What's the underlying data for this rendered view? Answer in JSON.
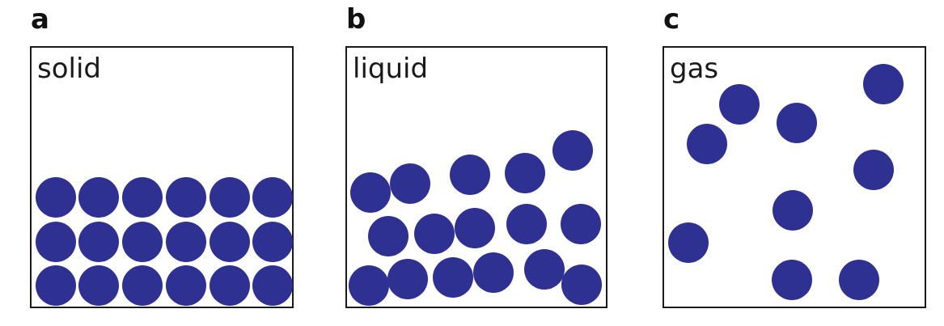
{
  "colors": {
    "particle": "#2e3192",
    "border": "#1a1a1a",
    "background": "#ffffff"
  },
  "panels": [
    {
      "letter": "a",
      "state": "solid"
    },
    {
      "letter": "b",
      "state": "liquid"
    },
    {
      "letter": "c",
      "state": "gas"
    }
  ]
}
